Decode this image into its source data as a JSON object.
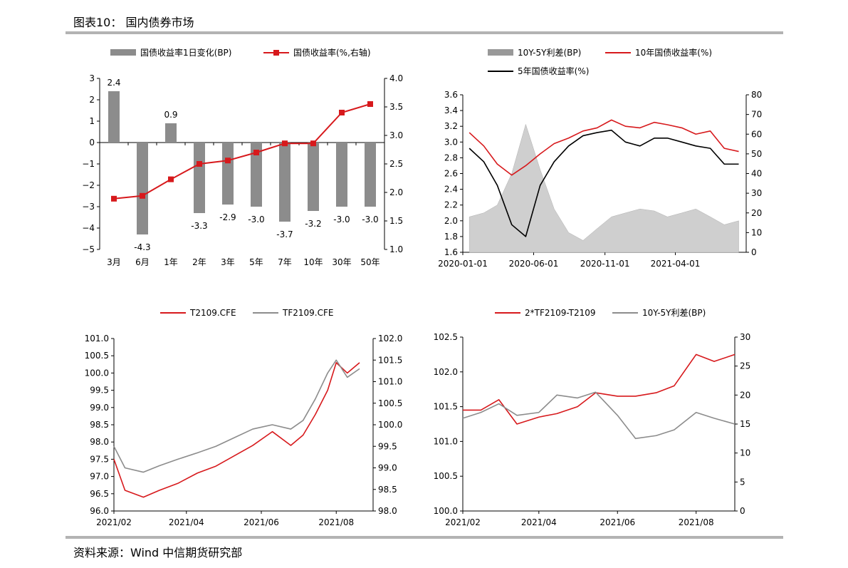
{
  "figure_title": "图表10： 国内债券市场",
  "source": "资料来源：Wind 中信期货研究部",
  "colors": {
    "red": "#d7191c",
    "gray": "#8c8c8c",
    "black": "#000000",
    "rule": "#b3b3b3"
  },
  "chart_data": [
    {
      "id": "curve",
      "type": "bar+line",
      "legend": [
        "国债收益率1日变化(BP)",
        "国债收益率(%,右轴)"
      ],
      "categories": [
        "3月",
        "6月",
        "1年",
        "2年",
        "3年",
        "5年",
        "7年",
        "10年",
        "30年",
        "50年"
      ],
      "series": [
        {
          "name": "国债收益率1日变化(BP)",
          "axis": "left",
          "type": "bar",
          "values": [
            2.4,
            -4.3,
            0.9,
            -3.3,
            -2.9,
            -3.0,
            -3.7,
            -3.2,
            -3.0,
            -3.0
          ]
        },
        {
          "name": "国债收益率(%,右轴)",
          "axis": "right",
          "type": "line",
          "values": [
            1.89,
            1.94,
            2.23,
            2.5,
            2.56,
            2.7,
            2.86,
            2.86,
            3.4,
            3.55
          ]
        }
      ],
      "bar_labels": [
        "2.4",
        "-4.3",
        "0.9",
        "-3.3",
        "-2.9",
        "-3.0",
        "-3.7",
        "-3.2",
        "-3.0",
        "-3.0"
      ],
      "left_axis": {
        "range": [
          -5,
          3
        ],
        "ticks": [
          "3",
          "2",
          "1",
          "0",
          "−1",
          "−2",
          "−3",
          "−4",
          "−5"
        ]
      },
      "right_axis": {
        "range": [
          1.0,
          4.0
        ],
        "ticks": [
          "4.0",
          "3.5",
          "3.0",
          "2.5",
          "2.0",
          "1.5",
          "1.0"
        ]
      }
    },
    {
      "id": "spread",
      "type": "area+line",
      "legend": [
        "10Y-5Y利差(BP)",
        "10年国债收益率(%)",
        "5年国债收益率(%)"
      ],
      "x_ticks": [
        "2020-01-01",
        "2020-06-01",
        "2020-11-01",
        "2021-04-01"
      ],
      "x_range": [
        "2020-01-01",
        "2021-08-31"
      ],
      "left_axis": {
        "range": [
          1.6,
          3.6
        ],
        "ticks": [
          "3.6",
          "3.4",
          "3.2",
          "3.0",
          "2.8",
          "2.6",
          "2.4",
          "2.2",
          "2.0",
          "1.8",
          "1.6"
        ]
      },
      "right_axis": {
        "range": [
          0,
          80
        ],
        "ticks": [
          "80",
          "70",
          "60",
          "50",
          "40",
          "30",
          "20",
          "10",
          "0"
        ]
      },
      "series": [
        {
          "name": "10Y-5Y利差(BP)",
          "axis": "right",
          "type": "area",
          "x": [
            "2020-01",
            "2020-02",
            "2020-03",
            "2020-04",
            "2020-05",
            "2020-06",
            "2020-07",
            "2020-08",
            "2020-09",
            "2020-10",
            "2020-11",
            "2020-12",
            "2021-01",
            "2021-02",
            "2021-03",
            "2021-04",
            "2021-05",
            "2021-06",
            "2021-07",
            "2021-08"
          ],
          "values": [
            18,
            20,
            24,
            40,
            65,
            42,
            22,
            10,
            6,
            12,
            18,
            20,
            22,
            21,
            18,
            20,
            22,
            18,
            14,
            16
          ]
        },
        {
          "name": "10年国债收益率(%)",
          "axis": "left",
          "type": "line",
          "x": [
            "2020-01",
            "2020-02",
            "2020-03",
            "2020-04",
            "2020-05",
            "2020-06",
            "2020-07",
            "2020-08",
            "2020-09",
            "2020-10",
            "2020-11",
            "2020-12",
            "2021-01",
            "2021-02",
            "2021-03",
            "2021-04",
            "2021-05",
            "2021-06",
            "2021-07",
            "2021-08"
          ],
          "values": [
            3.12,
            2.95,
            2.72,
            2.58,
            2.7,
            2.85,
            2.98,
            3.05,
            3.14,
            3.18,
            3.28,
            3.2,
            3.18,
            3.25,
            3.22,
            3.18,
            3.1,
            3.14,
            2.92,
            2.88
          ]
        },
        {
          "name": "5年国债收益率(%)",
          "axis": "left",
          "type": "line",
          "x": [
            "2020-01",
            "2020-02",
            "2020-03",
            "2020-04",
            "2020-05",
            "2020-06",
            "2020-07",
            "2020-08",
            "2020-09",
            "2020-10",
            "2020-11",
            "2020-12",
            "2021-01",
            "2021-02",
            "2021-03",
            "2021-04",
            "2021-05",
            "2021-06",
            "2021-07",
            "2021-08"
          ],
          "values": [
            2.92,
            2.75,
            2.45,
            1.95,
            1.8,
            2.45,
            2.75,
            2.95,
            3.08,
            3.12,
            3.15,
            3.0,
            2.95,
            3.05,
            3.05,
            3.0,
            2.95,
            2.92,
            2.72,
            2.72
          ]
        }
      ]
    },
    {
      "id": "futures",
      "type": "line",
      "legend": [
        "T2109.CFE",
        "TF2109.CFE"
      ],
      "x_ticks": [
        "2021/02",
        "2021/04",
        "2021/06",
        "2021/08"
      ],
      "left_axis": {
        "range": [
          96.0,
          101.0
        ],
        "ticks": [
          "101.0",
          "100.5",
          "100.0",
          "99.5",
          "99.0",
          "98.5",
          "98.0",
          "97.5",
          "97.0",
          "96.5",
          "96.0"
        ]
      },
      "right_axis": {
        "range": [
          98.0,
          102.0
        ],
        "ticks": [
          "102.0",
          "101.5",
          "101.0",
          "100.5",
          "100.0",
          "99.5",
          "99.0",
          "98.5",
          "98.0"
        ]
      },
      "series": [
        {
          "name": "T2109.CFE",
          "axis": "left",
          "x": [
            "2021-02-01",
            "2021-02-10",
            "2021-02-25",
            "2021-03-10",
            "2021-03-25",
            "2021-04-10",
            "2021-04-25",
            "2021-05-10",
            "2021-05-25",
            "2021-06-10",
            "2021-06-25",
            "2021-07-05",
            "2021-07-15",
            "2021-07-25",
            "2021-08-01",
            "2021-08-10",
            "2021-08-20"
          ],
          "values": [
            97.5,
            96.6,
            96.4,
            96.6,
            96.8,
            97.1,
            97.3,
            97.6,
            97.9,
            98.3,
            97.9,
            98.2,
            98.8,
            99.5,
            100.3,
            100.0,
            100.3
          ]
        },
        {
          "name": "TF2109.CFE",
          "axis": "right",
          "x": [
            "2021-02-01",
            "2021-02-10",
            "2021-02-25",
            "2021-03-10",
            "2021-03-25",
            "2021-04-10",
            "2021-04-25",
            "2021-05-10",
            "2021-05-25",
            "2021-06-10",
            "2021-06-25",
            "2021-07-05",
            "2021-07-15",
            "2021-07-25",
            "2021-08-01",
            "2021-08-10",
            "2021-08-20"
          ],
          "values": [
            99.5,
            99.0,
            98.9,
            99.05,
            99.2,
            99.35,
            99.5,
            99.7,
            99.9,
            100.0,
            99.9,
            100.1,
            100.6,
            101.2,
            101.5,
            101.1,
            101.3
          ]
        }
      ]
    },
    {
      "id": "basis",
      "type": "line",
      "legend": [
        "2*TF2109-T2109",
        "10Y-5Y利差(BP)"
      ],
      "x_ticks": [
        "2021/02",
        "2021/04",
        "2021/06",
        "2021/08"
      ],
      "left_axis": {
        "range": [
          100.0,
          102.5
        ],
        "ticks": [
          "102.5",
          "102.0",
          "101.5",
          "101.0",
          "100.5",
          "100.0"
        ]
      },
      "right_axis": {
        "range": [
          0,
          30
        ],
        "ticks": [
          "30",
          "25",
          "20",
          "15",
          "10",
          "5",
          "0"
        ]
      },
      "series": [
        {
          "name": "2*TF2109-T2109",
          "axis": "left",
          "x": [
            "2021-02-01",
            "2021-02-15",
            "2021-03-01",
            "2021-03-15",
            "2021-04-01",
            "2021-04-15",
            "2021-05-01",
            "2021-05-15",
            "2021-06-01",
            "2021-06-15",
            "2021-07-01",
            "2021-07-15",
            "2021-08-01",
            "2021-08-15",
            "2021-08-31"
          ],
          "values": [
            101.45,
            101.45,
            101.6,
            101.25,
            101.35,
            101.4,
            101.5,
            101.7,
            101.65,
            101.65,
            101.7,
            101.8,
            102.25,
            102.15,
            102.25
          ]
        },
        {
          "name": "10Y-5Y利差(BP)",
          "axis": "right",
          "x": [
            "2021-02-01",
            "2021-02-15",
            "2021-03-01",
            "2021-03-15",
            "2021-04-01",
            "2021-04-15",
            "2021-05-01",
            "2021-05-15",
            "2021-06-01",
            "2021-06-15",
            "2021-07-01",
            "2021-07-15",
            "2021-08-01",
            "2021-08-15",
            "2021-08-31"
          ],
          "values": [
            16,
            17,
            18.5,
            16.5,
            17,
            20,
            19.5,
            20.5,
            16.5,
            12.5,
            13,
            14,
            17,
            16,
            15
          ]
        }
      ]
    }
  ]
}
